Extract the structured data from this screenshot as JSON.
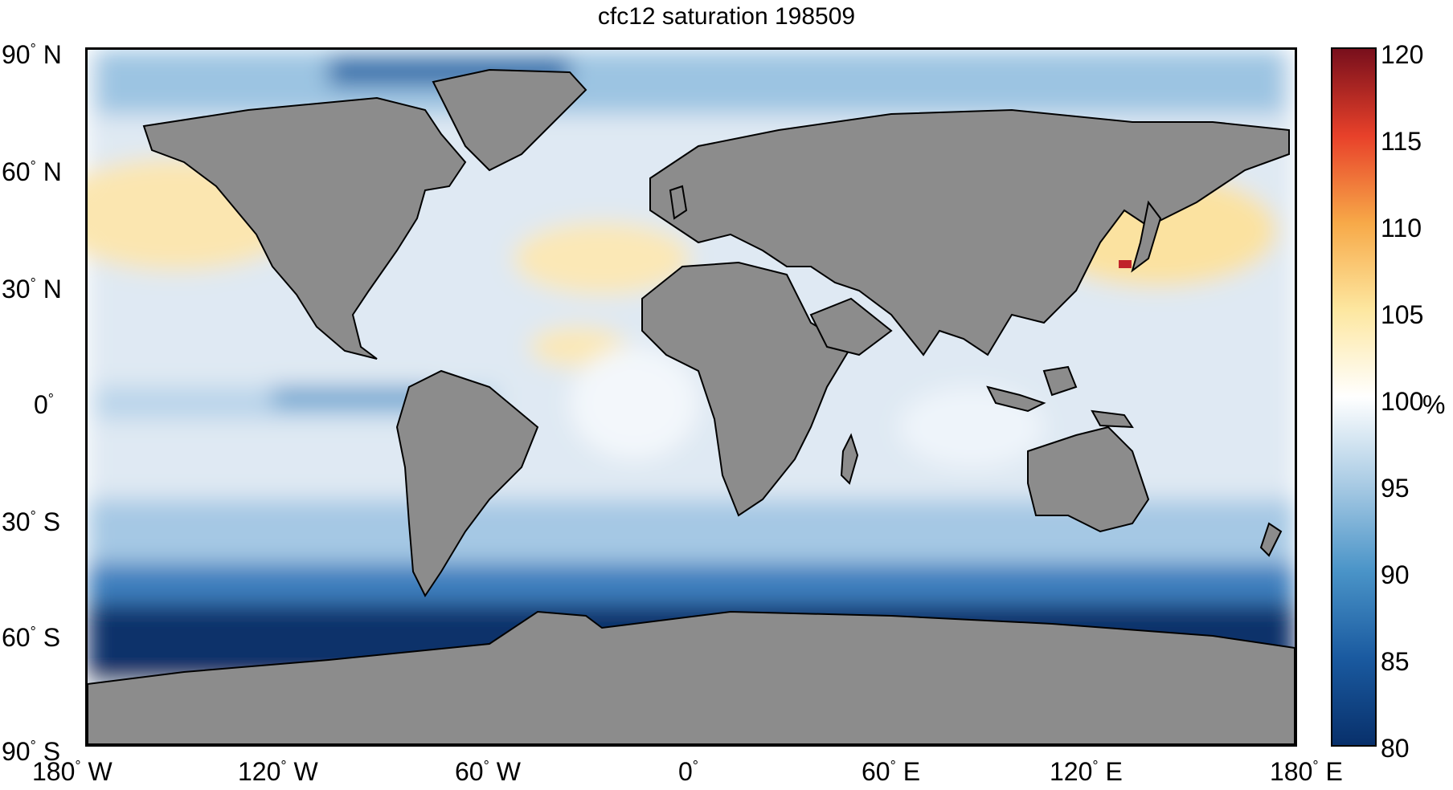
{
  "title": "cfc12 saturation 198509",
  "lat_ticks": [
    {
      "deg": "90",
      "hemi": "N"
    },
    {
      "deg": "60",
      "hemi": "N"
    },
    {
      "deg": "30",
      "hemi": "N"
    },
    {
      "deg": "0",
      "hemi": ""
    },
    {
      "deg": "30",
      "hemi": "S"
    },
    {
      "deg": "60",
      "hemi": "S"
    },
    {
      "deg": "90",
      "hemi": "S"
    }
  ],
  "lon_ticks": [
    {
      "deg": "180",
      "hemi": "W"
    },
    {
      "deg": "120",
      "hemi": "W"
    },
    {
      "deg": "60",
      "hemi": "W"
    },
    {
      "deg": "0",
      "hemi": ""
    },
    {
      "deg": "60",
      "hemi": "E"
    },
    {
      "deg": "120",
      "hemi": "E"
    },
    {
      "deg": "180",
      "hemi": "E"
    }
  ],
  "colorbar": {
    "ticks": [
      "120",
      "115",
      "110",
      "105",
      "100",
      "95",
      "90",
      "85",
      "80"
    ],
    "unit": "%",
    "min": 80,
    "max": 120,
    "colors": {
      "80": "#08306b",
      "85": "#1a5aa0",
      "90": "#4a94c8",
      "95": "#a9cbe4",
      "100": "#ffffff",
      "105": "#fde7a0",
      "110": "#f7a948",
      "115": "#e8412a",
      "120": "#780f1c"
    }
  },
  "colors": {
    "land": "#8c8c8c",
    "ocean_base": "#dfe9f3"
  }
}
